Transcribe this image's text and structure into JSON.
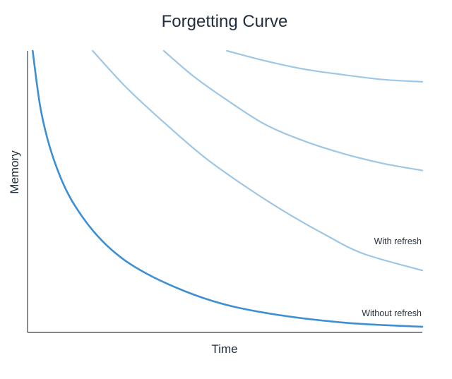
{
  "chart_data": {
    "type": "line",
    "title": "Forgetting Curve",
    "xlabel": "Time",
    "ylabel": "Memory",
    "xlim": [
      0,
      100
    ],
    "ylim": [
      0,
      100
    ],
    "grid": false,
    "annotations": [
      {
        "text": "With refresh",
        "target_series": 1
      },
      {
        "text": "Without refresh",
        "target_series": 0
      }
    ],
    "colors": {
      "primary": "#3d8fd3",
      "secondary": "#9ec7e6",
      "axis": "#3b3f45",
      "text": "#1f2d3d"
    },
    "series": [
      {
        "role": "without-refresh",
        "color": "#3d8fd3",
        "x": [
          1.3,
          3.5,
          7.0,
          12.0,
          20.0,
          30.0,
          45.0,
          60.0,
          80.0,
          100.0
        ],
        "y": [
          100.0,
          78.0,
          60.0,
          45.0,
          31.0,
          21.0,
          12.0,
          7.0,
          3.5,
          2.0
        ]
      },
      {
        "role": "refresh-1",
        "color": "#9ec7e6",
        "x": [
          16.5,
          25.0,
          35.0,
          45.0,
          55.0,
          65.0,
          75.0,
          85.0,
          100.0
        ],
        "y": [
          100.0,
          87.0,
          74.0,
          62.0,
          52.0,
          43.0,
          35.0,
          28.0,
          22.0
        ]
      },
      {
        "role": "refresh-2",
        "color": "#9ec7e6",
        "x": [
          34.5,
          42.0,
          50.0,
          60.0,
          70.0,
          80.0,
          90.0,
          100.0
        ],
        "y": [
          100.0,
          91.0,
          83.0,
          74.0,
          68.0,
          63.5,
          60.0,
          57.5
        ]
      },
      {
        "role": "refresh-3",
        "color": "#9ec7e6",
        "x": [
          50.5,
          60.0,
          70.0,
          80.0,
          90.0,
          100.0
        ],
        "y": [
          100.0,
          96.5,
          93.5,
          91.5,
          89.8,
          89.0
        ]
      }
    ]
  }
}
